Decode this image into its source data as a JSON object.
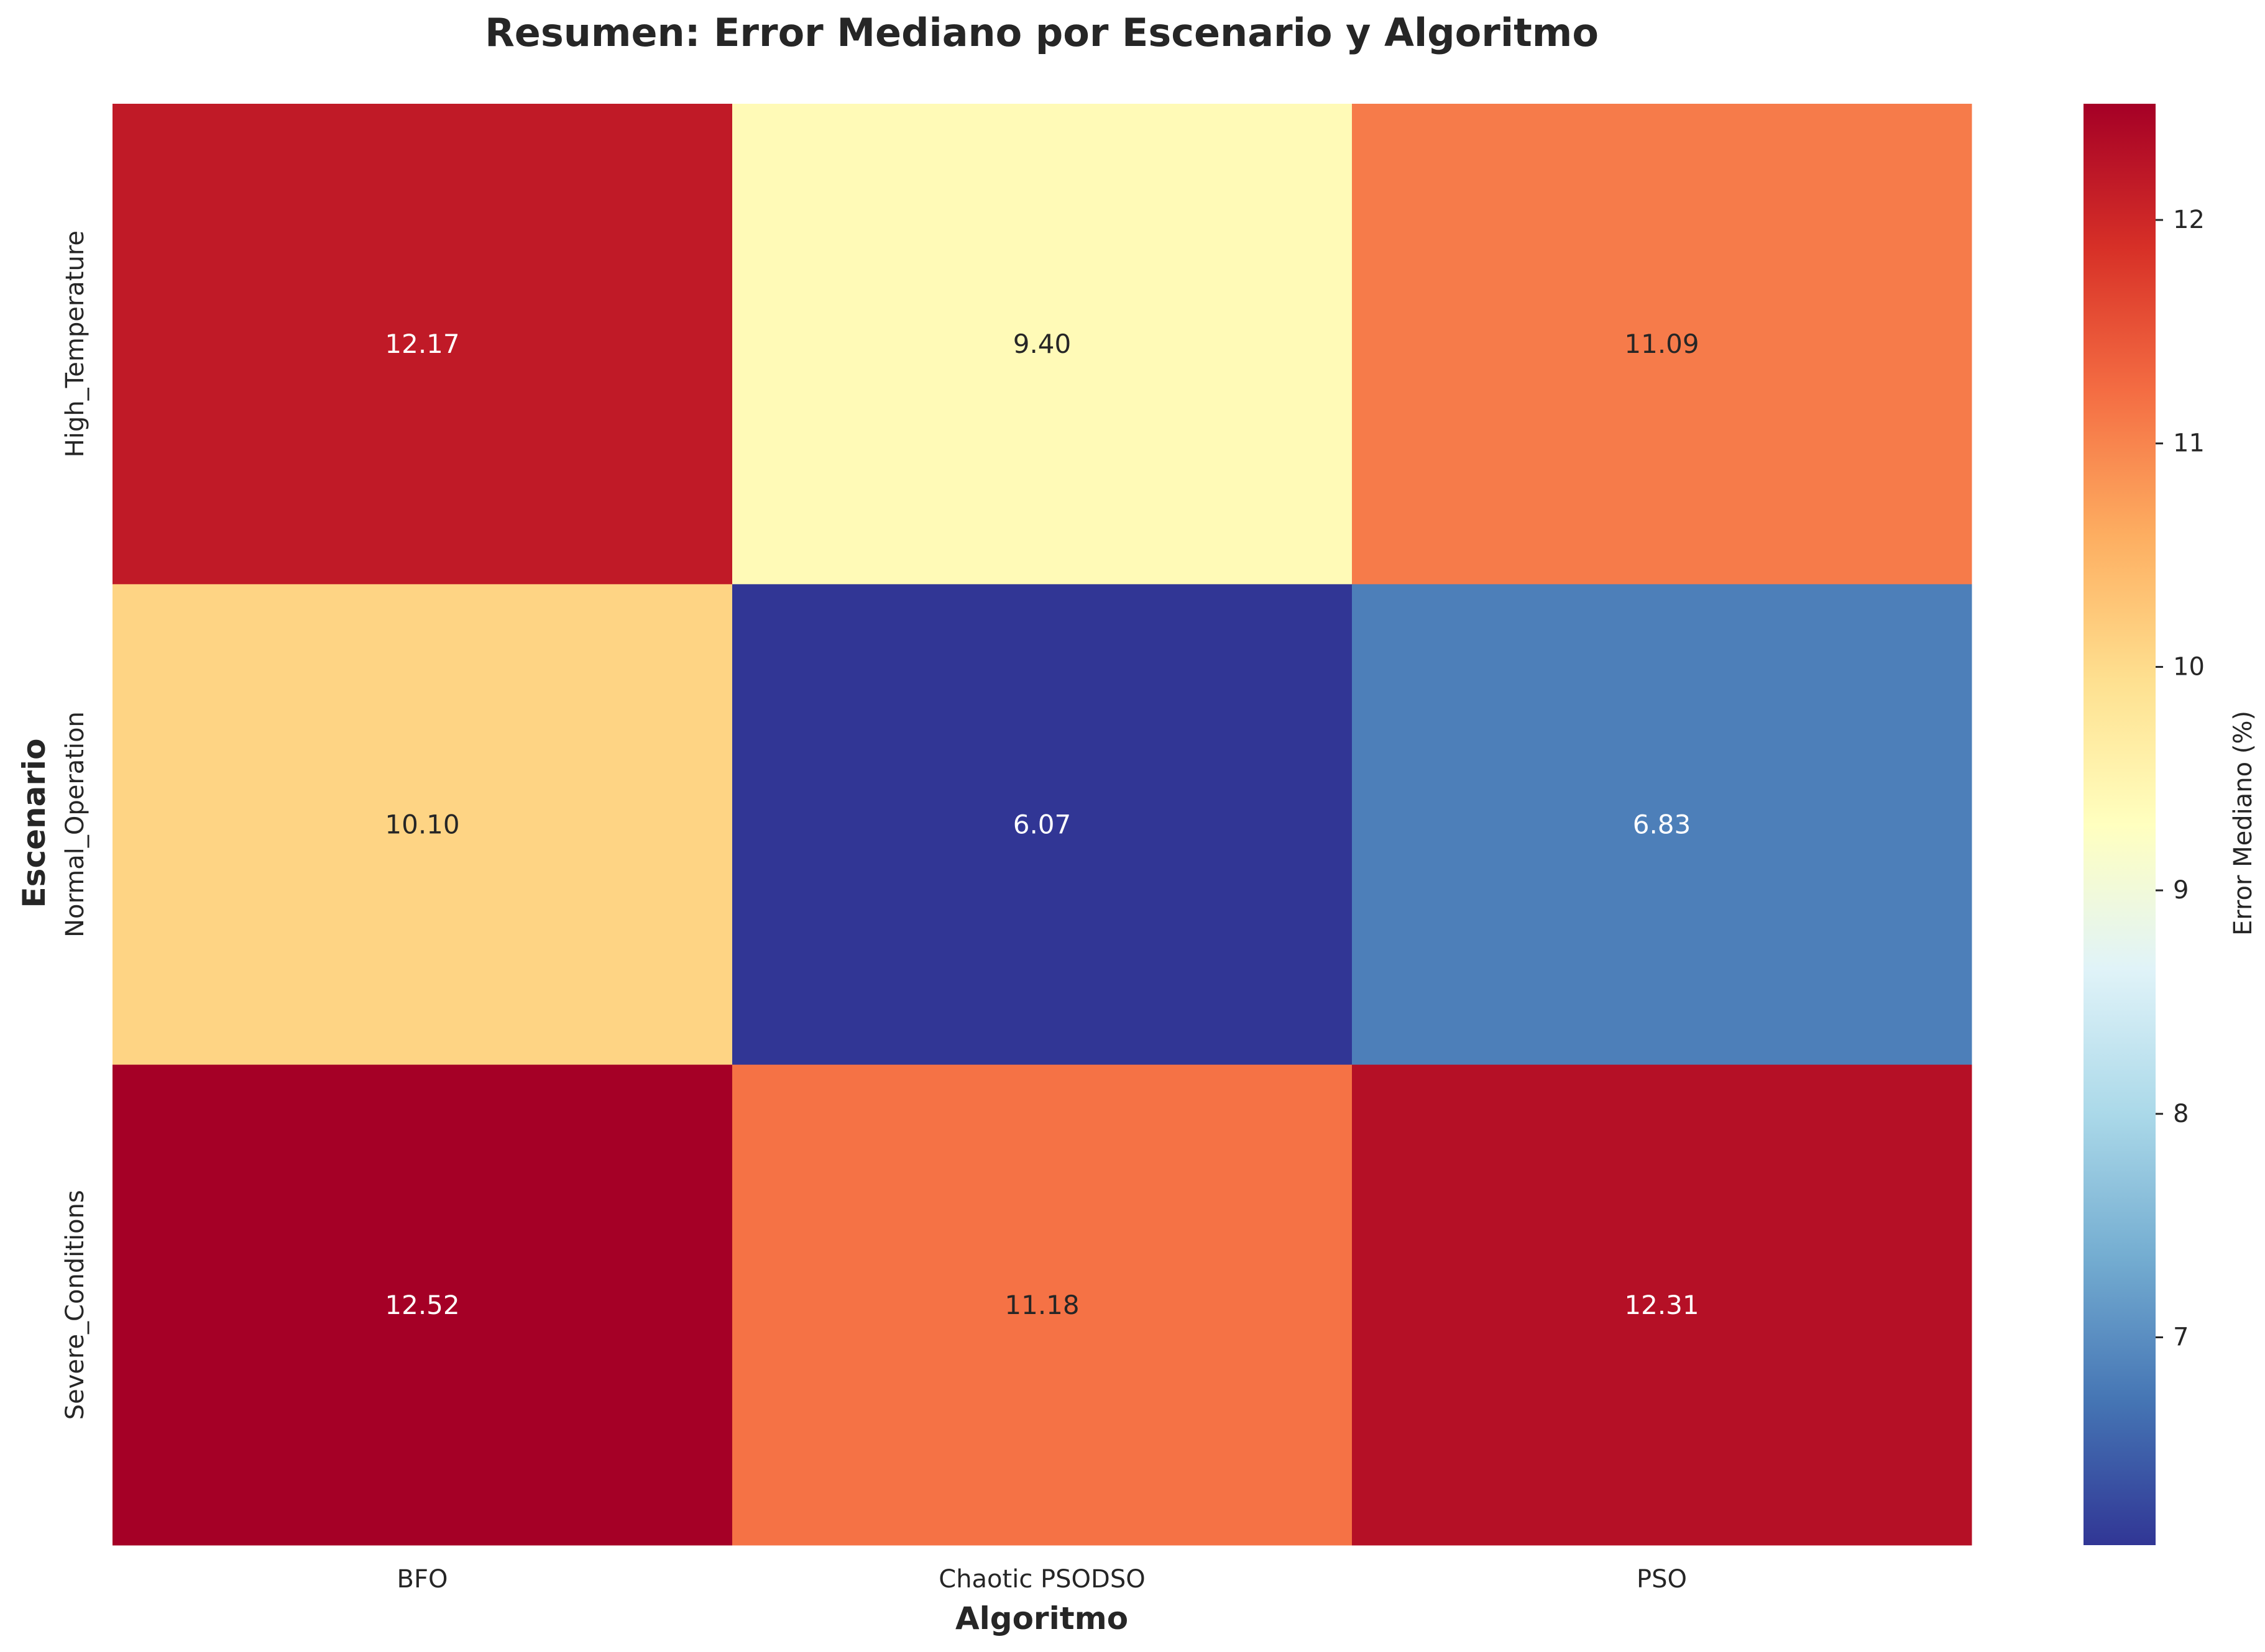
{
  "chart_data": {
    "type": "heatmap",
    "title": "Resumen: Error Mediano por Escenario y Algoritmo",
    "xlabel": "Algoritmo",
    "ylabel": "Escenario",
    "x_categories": [
      "BFO",
      "Chaotic PSODSO",
      "PSO"
    ],
    "y_categories": [
      "High_Temperature",
      "Normal_Operation",
      "Severe_Conditions"
    ],
    "values": [
      [
        12.17,
        9.4,
        11.09
      ],
      [
        10.1,
        6.07,
        6.83
      ],
      [
        12.52,
        11.18,
        12.31
      ]
    ],
    "value_format": "2 decimals",
    "colormap": "RdYlBu_r",
    "vmin": 6.07,
    "vmax": 12.52,
    "colorbar": {
      "label": "Error Mediano (%)",
      "ticks": [
        7,
        8,
        9,
        10,
        11,
        12
      ]
    }
  }
}
